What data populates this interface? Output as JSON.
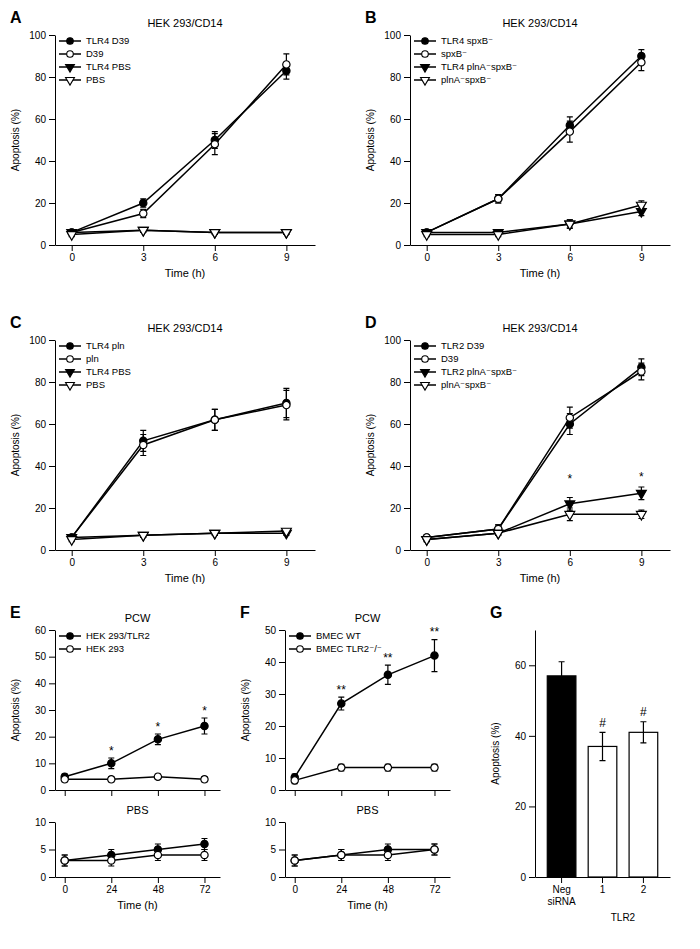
{
  "chart_data": [
    {
      "type": "line",
      "title": "HEK 293/CD14",
      "xlabel": "Time (h)",
      "ylabel": "Apoptosis (%)",
      "x": [
        0,
        3,
        6,
        9
      ],
      "xlim": [
        -0.7,
        10.2
      ],
      "xticks": [
        0,
        3,
        6,
        9
      ],
      "ylim": [
        0,
        100
      ],
      "yticks": [
        0,
        20,
        40,
        60,
        80,
        100
      ],
      "legend": "upper left",
      "series": [
        {
          "name": "TLR4 D39",
          "values": [
            6,
            20,
            50,
            83
          ],
          "yerr": [
            1,
            2,
            4,
            4
          ],
          "marker": "circle",
          "color": "black"
        },
        {
          "name": "D39",
          "values": [
            6,
            15,
            48,
            86
          ],
          "yerr": [
            1,
            2,
            5,
            5
          ],
          "marker": "circle",
          "color": "white"
        },
        {
          "name": "TLR4 PBS",
          "values": [
            6,
            7,
            6,
            6
          ],
          "yerr": [
            1,
            1,
            1,
            1
          ],
          "marker": "triangle-down",
          "color": "black"
        },
        {
          "name": "PBS",
          "values": [
            5,
            7,
            6,
            6
          ],
          "yerr": [
            1,
            1,
            1,
            1
          ],
          "marker": "triangle-down",
          "color": "white"
        }
      ],
      "annotations": [
        {
          "text": "A"
        }
      ]
    },
    {
      "type": "line",
      "title": "HEK 293/CD14",
      "xlabel": "Time (h)",
      "ylabel": "Apoptosis (%)",
      "x": [
        0,
        3,
        6,
        9
      ],
      "xlim": [
        -0.7,
        10.2
      ],
      "xticks": [
        0,
        3,
        6,
        9
      ],
      "ylim": [
        0,
        100
      ],
      "yticks": [
        0,
        20,
        40,
        60,
        80,
        100
      ],
      "legend": "upper left",
      "series": [
        {
          "name": "TLR4 spxB⁻",
          "values": [
            6,
            22,
            57,
            90
          ],
          "yerr": [
            1,
            2,
            4,
            3
          ],
          "marker": "circle",
          "color": "black"
        },
        {
          "name": "spxB⁻",
          "values": [
            6,
            22,
            54,
            87
          ],
          "yerr": [
            1,
            2,
            5,
            4
          ],
          "marker": "circle",
          "color": "white"
        },
        {
          "name": "TLR4 plnA⁻spxB⁻",
          "values": [
            6,
            6,
            10,
            16
          ],
          "yerr": [
            1,
            1,
            2,
            2
          ],
          "marker": "triangle-down",
          "color": "black"
        },
        {
          "name": "plnA⁻spxB⁻",
          "values": [
            5,
            5,
            10,
            19
          ],
          "yerr": [
            1,
            1,
            2,
            2
          ],
          "marker": "triangle-down",
          "color": "white"
        }
      ],
      "annotations": [
        {
          "text": "B"
        }
      ]
    },
    {
      "type": "line",
      "title": "HEK 293/CD14",
      "xlabel": "Time (h)",
      "ylabel": "Apoptosis (%)",
      "x": [
        0,
        3,
        6,
        9
      ],
      "xlim": [
        -0.7,
        10.2
      ],
      "xticks": [
        0,
        3,
        6,
        9
      ],
      "ylim": [
        0,
        100
      ],
      "yticks": [
        0,
        20,
        40,
        60,
        80,
        100
      ],
      "legend": "upper left",
      "series": [
        {
          "name": "TLR4 pln",
          "values": [
            6,
            52,
            62,
            70
          ],
          "yerr": [
            1,
            5,
            5,
            7
          ],
          "marker": "circle",
          "color": "black"
        },
        {
          "name": "pln",
          "values": [
            6,
            50,
            62,
            69
          ],
          "yerr": [
            1,
            5,
            5,
            7
          ],
          "marker": "circle",
          "color": "white"
        },
        {
          "name": "TLR4 PBS",
          "values": [
            6,
            7,
            8,
            8
          ],
          "yerr": [
            1,
            1,
            1,
            1
          ],
          "marker": "triangle-down",
          "color": "black"
        },
        {
          "name": "PBS",
          "values": [
            5,
            7,
            8,
            9
          ],
          "yerr": [
            1,
            1,
            1,
            1
          ],
          "marker": "triangle-down",
          "color": "white"
        }
      ],
      "annotations": [
        {
          "text": "C"
        }
      ]
    },
    {
      "type": "line",
      "title": "HEK 293/CD14",
      "xlabel": "Time (h)",
      "ylabel": "Apoptosis (%)",
      "x": [
        0,
        3,
        6,
        9
      ],
      "xlim": [
        -0.7,
        10.2
      ],
      "xticks": [
        0,
        3,
        6,
        9
      ],
      "ylim": [
        0,
        100
      ],
      "yticks": [
        0,
        20,
        40,
        60,
        80,
        100
      ],
      "legend": "upper left",
      "series": [
        {
          "name": "TLR2 D39",
          "values": [
            6,
            10,
            60,
            87
          ],
          "yerr": [
            1,
            2,
            5,
            4
          ],
          "marker": "circle",
          "color": "black"
        },
        {
          "name": "D39",
          "values": [
            6,
            10,
            63,
            85
          ],
          "yerr": [
            1,
            2,
            5,
            4
          ],
          "marker": "circle",
          "color": "white"
        },
        {
          "name": "TLR2 plnA⁻spxB⁻",
          "values": [
            5,
            8,
            22,
            27
          ],
          "yerr": [
            1,
            1,
            3,
            3
          ],
          "marker": "triangle-down",
          "color": "black"
        },
        {
          "name": "plnA⁻spxB⁻",
          "values": [
            5,
            8,
            17,
            17
          ],
          "yerr": [
            1,
            1,
            3,
            2
          ],
          "marker": "triangle-down",
          "color": "white"
        }
      ],
      "annotations": [
        {
          "text": "D"
        },
        {
          "text": "*",
          "x": 6,
          "y": 32
        },
        {
          "text": "*",
          "x": 9,
          "y": 33
        }
      ]
    },
    {
      "type": "line",
      "title": "PCW",
      "ylabel": "Apoptosis (%)",
      "x": [
        0,
        24,
        48,
        72
      ],
      "xlim": [
        -5,
        80
      ],
      "xticks": [
        0,
        24,
        48,
        72
      ],
      "ylim": [
        0,
        60
      ],
      "yticks": [
        0,
        10,
        20,
        30,
        40,
        50,
        60
      ],
      "legend": "upper left",
      "tick_labels": "y",
      "series": [
        {
          "name": "HEK 293/TLR2",
          "values": [
            5,
            10,
            19,
            24
          ],
          "yerr": [
            1,
            2,
            2,
            3
          ],
          "marker": "circle",
          "color": "black"
        },
        {
          "name": "HEK 293",
          "values": [
            4,
            4,
            5,
            4
          ],
          "yerr": [
            1,
            1,
            1,
            1
          ],
          "marker": "circle",
          "color": "white"
        }
      ],
      "annotations": [
        {
          "text": "E"
        },
        {
          "text": "*",
          "x": 24,
          "y": 13
        },
        {
          "text": "*",
          "x": 48,
          "y": 22
        },
        {
          "text": "*",
          "x": 72,
          "y": 28
        }
      ]
    },
    {
      "type": "line",
      "title": "PBS",
      "xlabel": "Time (h)",
      "x": [
        0,
        24,
        48,
        72
      ],
      "xlim": [
        -5,
        80
      ],
      "xticks": [
        0,
        24,
        48,
        72
      ],
      "ylim": [
        0,
        10
      ],
      "yticks": [
        0,
        5,
        10
      ],
      "legend": false,
      "series": [
        {
          "name": "HEK 293/TLR2",
          "values": [
            3,
            4,
            5,
            6
          ],
          "yerr": [
            1,
            1,
            1,
            1
          ],
          "marker": "circle",
          "color": "black"
        },
        {
          "name": "HEK 293",
          "values": [
            3,
            3,
            4,
            4
          ],
          "yerr": [
            1,
            1,
            1,
            1
          ],
          "marker": "circle",
          "color": "white"
        }
      ]
    },
    {
      "type": "line",
      "title": "PCW",
      "ylabel": "Apoptosis (%)",
      "x": [
        0,
        24,
        48,
        72
      ],
      "xlim": [
        -5,
        80
      ],
      "xticks": [
        0,
        24,
        48,
        72
      ],
      "ylim": [
        0,
        50
      ],
      "yticks": [
        0,
        10,
        20,
        30,
        40,
        50
      ],
      "legend": "upper left",
      "tick_labels": "y",
      "series": [
        {
          "name": "BMEC WT",
          "values": [
            4,
            27,
            36,
            42
          ],
          "yerr": [
            1,
            2,
            3,
            5
          ],
          "marker": "circle",
          "color": "black"
        },
        {
          "name": "BMEC TLR2⁻/⁻",
          "values": [
            3,
            7,
            7,
            7
          ],
          "yerr": [
            1,
            1,
            1,
            1
          ],
          "marker": "circle",
          "color": "white"
        }
      ],
      "annotations": [
        {
          "text": "F"
        },
        {
          "text": "**",
          "x": 24,
          "y": 30
        },
        {
          "text": "**",
          "x": 48,
          "y": 40
        },
        {
          "text": "**",
          "x": 72,
          "y": 48
        }
      ]
    },
    {
      "type": "line",
      "title": "PBS",
      "xlabel": "Time (h)",
      "x": [
        0,
        24,
        48,
        72
      ],
      "xlim": [
        -5,
        80
      ],
      "xticks": [
        0,
        24,
        48,
        72
      ],
      "ylim": [
        0,
        10
      ],
      "yticks": [
        0,
        5,
        10
      ],
      "legend": false,
      "series": [
        {
          "name": "BMEC WT",
          "values": [
            3,
            4,
            5,
            5
          ],
          "yerr": [
            1,
            1,
            1,
            1
          ],
          "marker": "circle",
          "color": "black"
        },
        {
          "name": "BMEC TLR2⁻/⁻",
          "values": [
            3,
            4,
            4,
            5
          ],
          "yerr": [
            1,
            1,
            1,
            1
          ],
          "marker": "circle",
          "color": "white"
        }
      ]
    },
    {
      "type": "bar",
      "ylabel": "Apoptosis (%)",
      "categories": [
        "Neg\nsiRNA",
        "1",
        "2"
      ],
      "values": [
        57,
        37,
        41
      ],
      "yerr": [
        4,
        4,
        3
      ],
      "colors": [
        "black",
        "white",
        "white"
      ],
      "ylim": [
        0,
        70
      ],
      "yticks": [
        0,
        20,
        40,
        60
      ],
      "annotations": [
        {
          "text": "G"
        },
        {
          "text": "TLR2",
          "x": [
            "1",
            "2"
          ]
        },
        {
          "text": "#",
          "x": "1",
          "y": 42.5
        },
        {
          "text": "#",
          "x": "2",
          "y": 45.5
        }
      ]
    }
  ]
}
